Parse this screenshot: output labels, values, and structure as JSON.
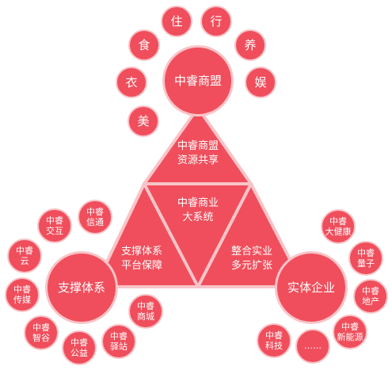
{
  "colors": {
    "node_fill": "#f04e5c",
    "node_border": "#f8c4c8",
    "triangle_fill": "#f04e5c",
    "triangle_stroke": "#f8c4c8",
    "text": "#ffffff"
  },
  "hubs": {
    "top": "中睿商盟",
    "left": "支撑体系",
    "right": "实体企业"
  },
  "triangle": {
    "top_line1": "中睿商盟",
    "top_line2": "资源共享",
    "center_line1": "中睿商业",
    "center_line2": "大系统",
    "left_line1": "支撑体系",
    "left_line2": "平台保障",
    "right_line1": "整合实业",
    "right_line2": "多元扩张"
  },
  "top_satellites": [
    "住",
    "行",
    "食",
    "养",
    "衣",
    "娱",
    "美"
  ],
  "left_satellites": [
    [
      "中睿",
      "信通"
    ],
    [
      "中睿",
      "交互"
    ],
    [
      "中睿",
      "云"
    ],
    [
      "中睿",
      "传媒"
    ],
    [
      "中睿",
      "智谷"
    ],
    [
      "中睿",
      "公益"
    ],
    [
      "中睿",
      "驿站"
    ],
    [
      "中睿",
      "商城"
    ]
  ],
  "right_satellites": [
    [
      "中睿",
      "大健康"
    ],
    [
      "中睿",
      "量子"
    ],
    [
      "中睿",
      "地产"
    ],
    [
      "中睿",
      "新能源"
    ],
    [
      "……"
    ],
    [
      "中睿",
      "科技"
    ]
  ]
}
